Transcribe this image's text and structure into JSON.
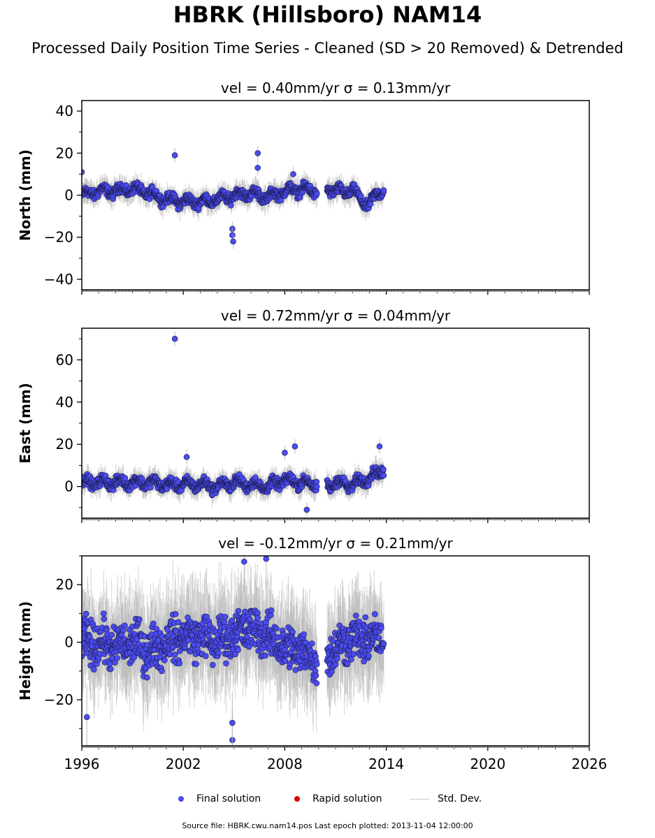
{
  "title": "HBRK (Hillsboro) NAM14",
  "subtitle": "Processed Daily Position Time Series - Cleaned (SD > 20 Removed) & Detrended",
  "legend": {
    "final": "Final solution",
    "rapid": "Rapid solution",
    "std": "Std. Dev."
  },
  "colors": {
    "final": "#4b4bf0",
    "rapid": "#dd0000",
    "std": "#b0b0b0"
  },
  "footer": "Source file: HBRK.cwu.nam14.pos  Last epoch plotted: 2013-11-04 12:00:00",
  "chart_data": [
    {
      "type": "scatter",
      "title": "vel = 0.40mm/yr   σ = 0.13mm/yr",
      "ylabel": "North (mm)",
      "xlim": [
        1996,
        2026
      ],
      "ylim": [
        -45,
        45
      ],
      "yticks": [
        -40,
        -20,
        0,
        20,
        40
      ],
      "series_envelope": {
        "x": [
          1996.0,
          1997.0,
          1998.0,
          1999.0,
          2000.0,
          2001.0,
          2002.0,
          2003.0,
          2004.0,
          2005.0,
          2006.0,
          2007.0,
          2008.0,
          2009.0,
          2009.8,
          2010.8,
          2011.5,
          2012.0,
          2012.5,
          2013.0,
          2013.8
        ],
        "y": [
          0,
          2,
          2,
          3,
          1,
          -2,
          -3,
          -3,
          -2,
          0,
          1,
          -1,
          2,
          3,
          2,
          3,
          1,
          3,
          -3,
          -4,
          3
        ],
        "spread": 3.5
      },
      "outliers": [
        {
          "x": 1996.0,
          "y": 11
        },
        {
          "x": 2001.5,
          "y": 19
        },
        {
          "x": 2004.9,
          "y": -16
        },
        {
          "x": 2004.9,
          "y": -19
        },
        {
          "x": 2004.95,
          "y": -22
        },
        {
          "x": 2006.4,
          "y": 20
        },
        {
          "x": 2006.4,
          "y": 13
        },
        {
          "x": 2008.5,
          "y": 10
        }
      ]
    },
    {
      "type": "scatter",
      "title": "vel = 0.72mm/yr   σ = 0.04mm/yr",
      "ylabel": "East (mm)",
      "xlim": [
        1996,
        2026
      ],
      "ylim": [
        -15,
        75
      ],
      "yticks": [
        0,
        20,
        40,
        60
      ],
      "series_envelope": {
        "x": [
          1996.0,
          1997.0,
          1998.0,
          1999.0,
          2000.0,
          2001.0,
          2002.0,
          2003.0,
          2004.0,
          2005.0,
          2006.0,
          2007.0,
          2008.0,
          2009.0,
          2009.8,
          2010.8,
          2011.5,
          2012.0,
          2012.5,
          2013.0,
          2013.8
        ],
        "y": [
          2,
          2,
          2,
          2,
          2,
          1,
          1,
          1,
          0,
          2,
          1,
          0,
          3,
          2,
          1,
          1,
          2,
          0,
          3,
          4,
          8
        ],
        "spread": 3.5
      },
      "outliers": [
        {
          "x": 2001.5,
          "y": 70
        },
        {
          "x": 2002.2,
          "y": 14
        },
        {
          "x": 2008.6,
          "y": 19
        },
        {
          "x": 2008.0,
          "y": 16
        },
        {
          "x": 2009.3,
          "y": -11
        },
        {
          "x": 2013.6,
          "y": 19
        }
      ]
    },
    {
      "type": "scatter",
      "title": "vel = -0.12mm/yr   σ = 0.21mm/yr",
      "ylabel": "Height (mm)",
      "xlabel_ticks": [
        "1996",
        "2002",
        "2008",
        "2014",
        "2020",
        "2026"
      ],
      "xticks": [
        1996,
        2002,
        2008,
        2014,
        2020,
        2026
      ],
      "xlim": [
        1996,
        2026
      ],
      "ylim": [
        -36,
        30
      ],
      "yticks": [
        -20,
        0,
        20
      ],
      "series_envelope": {
        "x": [
          1996.0,
          1997.0,
          1998.0,
          1999.0,
          2000.0,
          2001.0,
          2002.0,
          2003.0,
          2004.0,
          2005.0,
          2006.0,
          2007.0,
          2008.0,
          2009.0,
          2009.8,
          2010.8,
          2011.5,
          2012.0,
          2012.5,
          2013.0,
          2013.8
        ],
        "y": [
          0,
          0,
          -2,
          0,
          -3,
          0,
          2,
          2,
          0,
          3,
          5,
          2,
          -2,
          -3,
          -6,
          -3,
          0,
          2,
          0,
          2,
          0
        ],
        "spread": 11
      },
      "outliers": [
        {
          "x": 2004.9,
          "y": -34
        },
        {
          "x": 2004.9,
          "y": -28
        },
        {
          "x": 2006.9,
          "y": 29
        },
        {
          "x": 2005.6,
          "y": 28
        },
        {
          "x": 1996.3,
          "y": -26
        }
      ]
    }
  ]
}
